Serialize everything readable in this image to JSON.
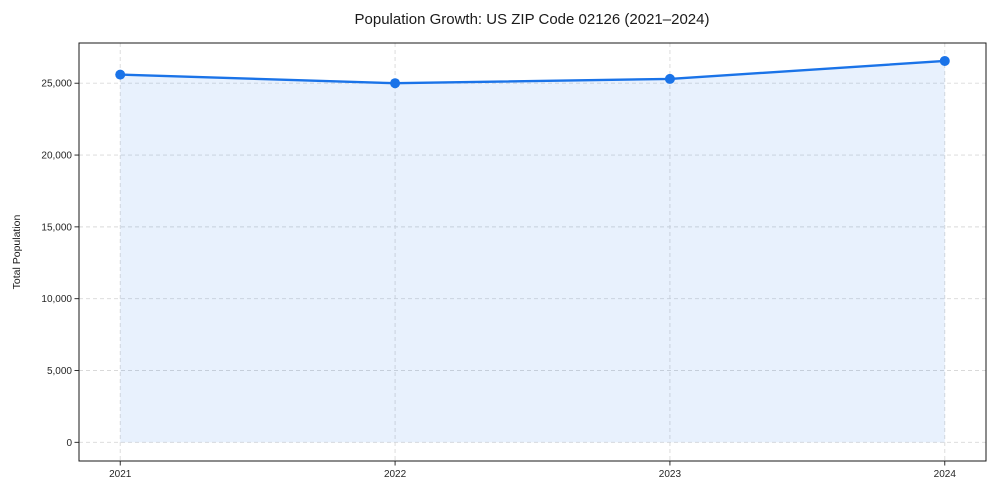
{
  "figure": {
    "background": "#ffffff"
  },
  "chart_data": {
    "type": "line",
    "title": "Population Growth: US ZIP Code 02126 (2021–2024)",
    "xlabel": "",
    "ylabel": "Total Population",
    "x": [
      2021,
      2022,
      2023,
      2024
    ],
    "series": [
      {
        "name": "Total Population",
        "values": [
          25600,
          25000,
          25300,
          26550
        ],
        "color": "#1a73e8",
        "marker": "circle",
        "marker_radius": 5,
        "line_width": 2.4,
        "area_fill": true,
        "fill_opacity": 0.1
      }
    ],
    "x_tick_labels": [
      "2021",
      "2022",
      "2023",
      "2024"
    ],
    "y_ticks": [
      0,
      5000,
      10000,
      15000,
      20000,
      25000
    ],
    "y_tick_labels": [
      "0",
      "5,000",
      "10,000",
      "15,000",
      "20,000",
      "25,000"
    ],
    "xlim": [
      2020.85,
      2024.15
    ],
    "ylim": [
      -1300,
      27800
    ],
    "baseline_value": 0,
    "grid": true,
    "grid_color": "#d9d9d9",
    "grid_style": "dashed",
    "axis_color": "#1a1a1a",
    "text_color": "#262626",
    "legend_position": "none"
  }
}
